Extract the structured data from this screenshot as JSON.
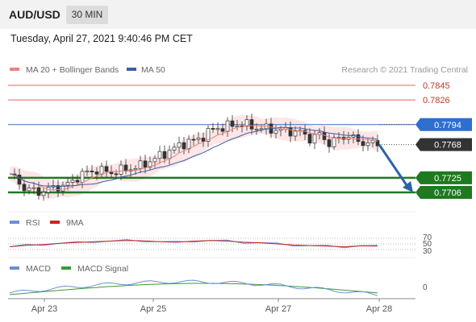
{
  "header": {
    "pair": "AUD/USD",
    "timeframe": "30 MIN"
  },
  "timestamp": "Tuesday, April 27, 2021 9:40:46 PM CET",
  "colors": {
    "resistance": "#e8625f",
    "pivot": "#3d6fb6",
    "support": "#1e7a1e",
    "current": "#333333",
    "ma20": "#f08080",
    "ma50": "#3b5ea8",
    "candle_up": "#ffffff",
    "candle_down": "#333333",
    "arrow": "#2a62a8",
    "rsi": "#6b8fd6",
    "rsi_ma": "#cc2222",
    "macd": "#6b8fd6",
    "macd_signal": "#3a9a3a"
  },
  "chart_data": {
    "type": "candlestick",
    "legend": [
      {
        "label": "MA 20 + Bollinger Bands",
        "color": "#f08080"
      },
      {
        "label": "MA 50",
        "color": "#3b5ea8"
      }
    ],
    "credit": "Research © 2021 Trading Central",
    "price_range": [
      0.7696,
      0.7852
    ],
    "levels": [
      {
        "value": 0.7845,
        "label": "0.7845",
        "kind": "resistance"
      },
      {
        "value": 0.7826,
        "label": "0.7826",
        "kind": "resistance"
      },
      {
        "value": 0.7794,
        "label": "0.7794",
        "kind": "pivot"
      },
      {
        "value": 0.7768,
        "label": "0.7768",
        "kind": "current"
      },
      {
        "value": 0.7725,
        "label": "0.7725",
        "kind": "support"
      },
      {
        "value": 0.7706,
        "label": "0.7706",
        "kind": "support"
      }
    ],
    "x_ticks": [
      "Apr 23",
      "Apr 25",
      "Apr 27",
      "Apr 28"
    ],
    "price_path": [
      [
        0,
        0.773
      ],
      [
        3,
        0.7712
      ],
      [
        6,
        0.7706
      ],
      [
        9,
        0.7712
      ],
      [
        12,
        0.7716
      ],
      [
        15,
        0.773
      ],
      [
        18,
        0.7735
      ],
      [
        21,
        0.7732
      ],
      [
        24,
        0.7736
      ],
      [
        27,
        0.774
      ],
      [
        30,
        0.775
      ],
      [
        33,
        0.776
      ],
      [
        36,
        0.777
      ],
      [
        39,
        0.7775
      ],
      [
        42,
        0.7788
      ],
      [
        45,
        0.7792
      ],
      [
        48,
        0.7795
      ],
      [
        51,
        0.779
      ],
      [
        54,
        0.7788
      ],
      [
        57,
        0.7786
      ],
      [
        60,
        0.7784
      ],
      [
        62,
        0.7776
      ],
      [
        64,
        0.7781
      ],
      [
        66,
        0.777
      ],
      [
        68,
        0.7776
      ],
      [
        70,
        0.778
      ],
      [
        72,
        0.7772
      ],
      [
        74,
        0.777
      ],
      [
        76,
        0.7768
      ]
    ],
    "projection": {
      "from": 0.7768,
      "to": 0.7706
    },
    "rsi": {
      "legend": [
        {
          "label": "RSI",
          "color": "#6b8fd6"
        },
        {
          "label": "9MA",
          "color": "#cc2222"
        }
      ],
      "levels": [
        "70",
        "50",
        "30"
      ],
      "values": [
        40,
        45,
        48,
        52,
        55,
        58,
        60,
        62,
        61,
        58,
        56,
        60,
        62,
        60,
        56,
        54,
        50,
        46,
        44,
        42,
        40,
        43,
        42
      ]
    },
    "macd": {
      "legend": [
        {
          "label": "MACD",
          "color": "#6b8fd6"
        },
        {
          "label": "MACD Signal",
          "color": "#3a9a3a"
        }
      ],
      "zero_label": "0"
    }
  }
}
